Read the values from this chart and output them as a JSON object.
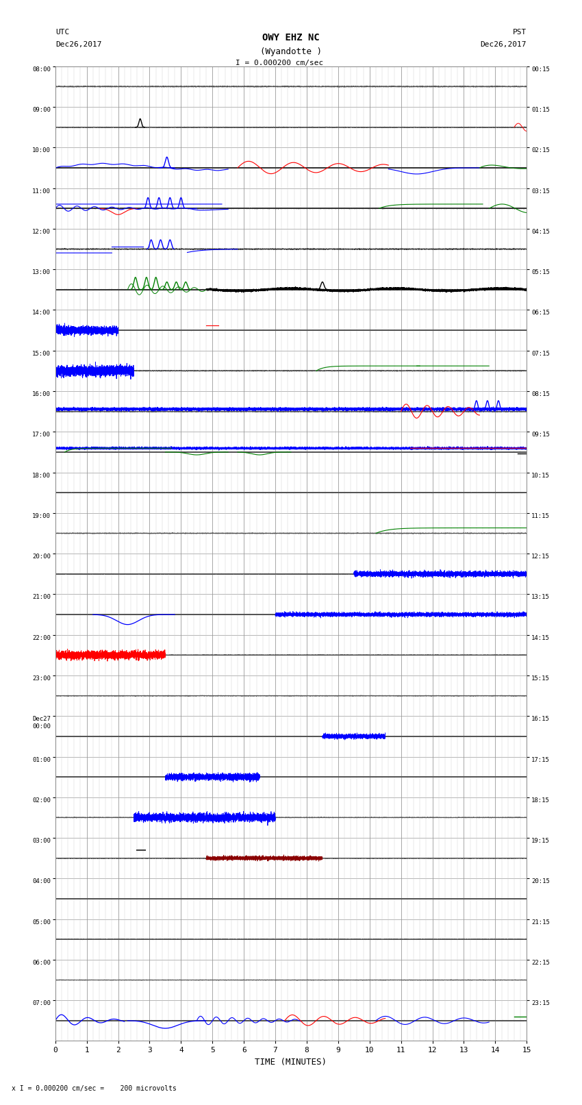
{
  "title_line1": "OWY EHZ NC",
  "title_line2": "(Wyandotte )",
  "scale_text": "I = 0.000200 cm/sec",
  "bottom_text": "x I = 0.000200 cm/sec =    200 microvolts",
  "utc_label": "UTC",
  "utc_date": "Dec26,2017",
  "pst_label": "PST",
  "pst_date": "Dec26,2017",
  "xlabel": "TIME (MINUTES)",
  "xlim": [
    0,
    15
  ],
  "num_rows": 24,
  "row_labels_left": [
    "08:00",
    "09:00",
    "10:00",
    "11:00",
    "12:00",
    "13:00",
    "14:00",
    "15:00",
    "16:00",
    "17:00",
    "18:00",
    "19:00",
    "20:00",
    "21:00",
    "22:00",
    "23:00",
    "Dec27\n00:00",
    "01:00",
    "02:00",
    "03:00",
    "04:00",
    "05:00",
    "06:00",
    "07:00"
  ],
  "row_labels_right": [
    "00:15",
    "01:15",
    "02:15",
    "03:15",
    "04:15",
    "05:15",
    "06:15",
    "07:15",
    "08:15",
    "09:15",
    "10:15",
    "11:15",
    "12:15",
    "13:15",
    "14:15",
    "15:15",
    "16:15",
    "17:15",
    "18:15",
    "19:15",
    "20:15",
    "21:15",
    "22:15",
    "23:15"
  ],
  "background_color": "#ffffff",
  "minor_grid_color": "#cccccc",
  "major_grid_color": "#999999",
  "noise_amp": 0.018,
  "fig_width": 8.5,
  "fig_height": 16.13,
  "dpi": 100
}
